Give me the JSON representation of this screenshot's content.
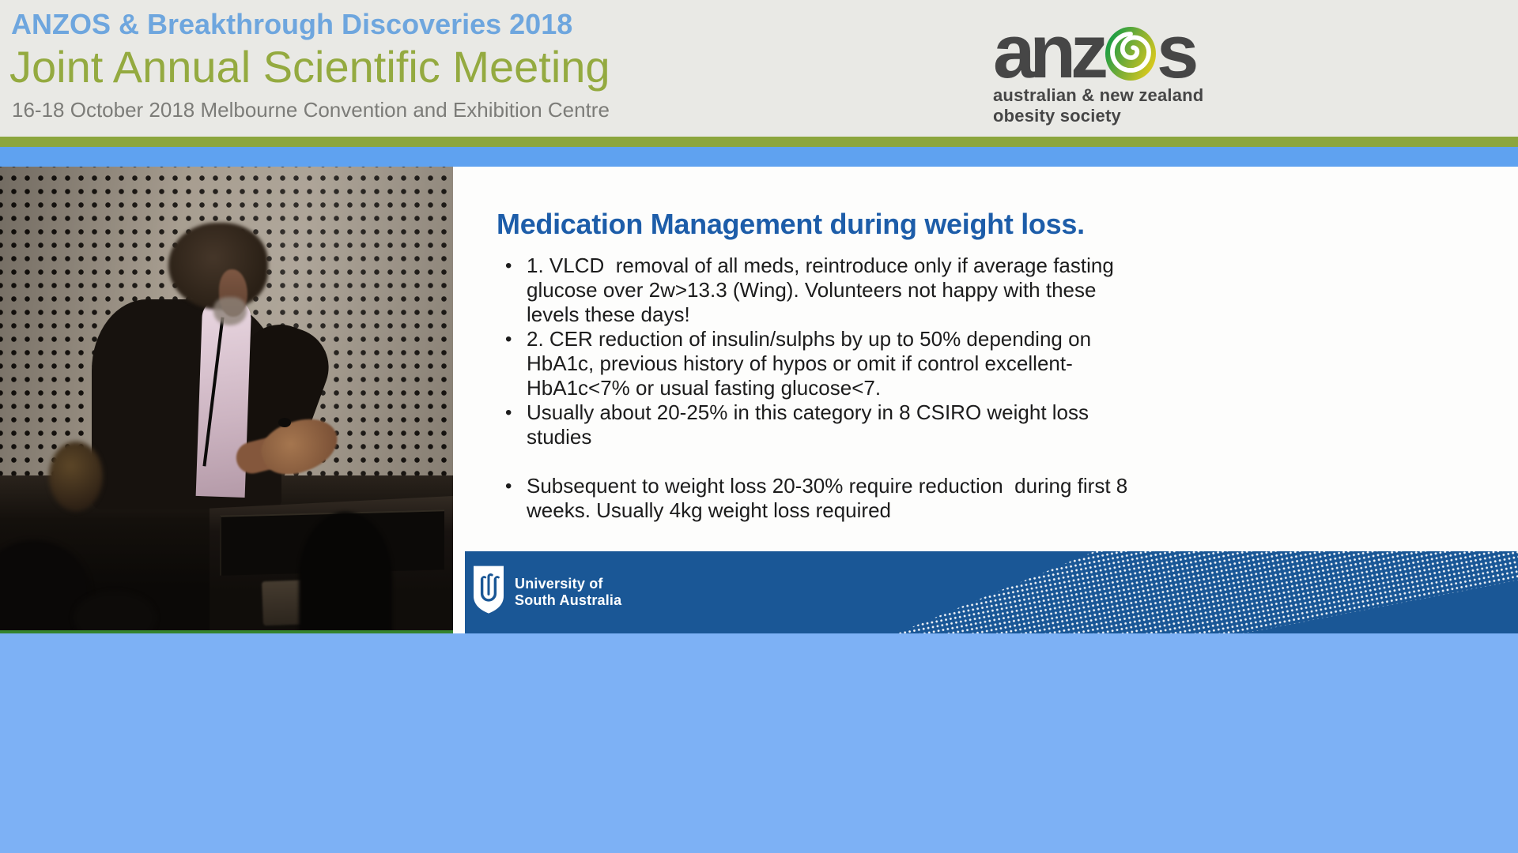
{
  "header": {
    "event_line": "ANZOS & Breakthrough Discoveries 2018",
    "title_line": "Joint Annual Scientific Meeting",
    "venue_line": "16-18 October 2018 Melbourne Convention and Exhibition Centre",
    "logo": {
      "brand_word": "anzos",
      "text_before_koru": "anz",
      "text_after_koru": "s",
      "koru_icon": "koru-spiral-icon",
      "tagline_line1": "australian & new zealand",
      "tagline_line2": "obesity society"
    }
  },
  "slide": {
    "title": "Medication Management during weight loss.",
    "bullets": [
      {
        "lines": [
          "1. VLCD  removal of all meds, reintroduce only if average fasting",
          "glucose over 2w>13.3 (Wing). Volunteers not happy with these",
          "levels these days!"
        ]
      },
      {
        "lines": [
          "2. CER reduction of insulin/sulphs by up to 50% depending on",
          "HbA1c, previous history of hypos or omit if control excellent-",
          "HbA1c<7% or usual fasting glucose<7."
        ]
      },
      {
        "lines": [
          "Usually about 20-25% in this category in 8 CSIRO weight loss",
          "studies"
        ]
      },
      {
        "gap_before": true,
        "lines": [
          "Subsequent to weight loss 20-30% require reduction  during first 8",
          "weeks. Usually 4kg weight loss required"
        ]
      }
    ],
    "footer_logo": {
      "line1": "University of",
      "line2": "South Australia"
    }
  },
  "video": {
    "description": "speaker at lectern in front of perforated acoustic wall, audience silhouettes in foreground"
  },
  "colors": {
    "header_bg": "#e9e9e5",
    "event_line_text": "#6ea6de",
    "title_line_text": "#94aa40",
    "venue_line_text": "#7c7c78",
    "olive_bar": "#8ca63d",
    "blue_bar": "#5fa2f0",
    "slide_bg": "#fdfdfc",
    "slide_title_text": "#1d5da9",
    "slide_body_text": "#1c1c1c",
    "footer_bar": "#1a5796",
    "bottom_band": "#7db1f5",
    "anzos_text": "#464646",
    "koru_green": "#1f9e43",
    "koru_yellow": "#d9c91d",
    "wall": "#a49a8c",
    "video_green_line": "#35842f"
  }
}
